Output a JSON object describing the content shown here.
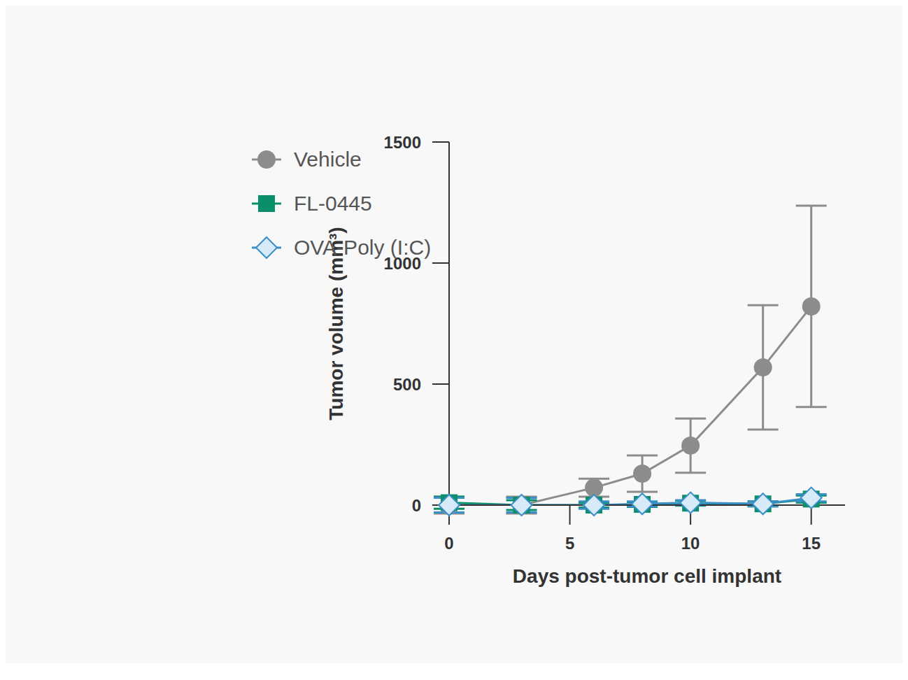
{
  "chart_data": {
    "type": "line",
    "x_label": "Days post-tumor cell implant",
    "y_label": "Tumor volume (mm³)",
    "x": [
      0,
      3,
      6,
      8,
      10,
      13,
      15
    ],
    "xlim": [
      0,
      16.4
    ],
    "xticks": [
      0,
      5,
      10,
      15
    ],
    "ylim": [
      0,
      1500
    ],
    "yticks": [
      0,
      500,
      1000,
      1500
    ],
    "grid": false,
    "legend": "upper left",
    "series": [
      {
        "name": "Vehicle",
        "color": "#8c8c8c",
        "marker": "circle",
        "values": [
          0,
          0,
          72,
          130,
          246,
          569,
          821
        ],
        "errors": [
          35,
          35,
          37,
          75,
          112,
          257,
          416
        ]
      },
      {
        "name": "FL-0445",
        "color": "#0a8f6a",
        "marker": "square",
        "values": [
          10,
          0,
          0,
          3,
          8,
          5,
          25
        ],
        "errors": [
          25,
          20,
          10,
          10,
          10,
          10,
          15
        ]
      },
      {
        "name": "OVA-Poly (I:C)",
        "color": "#3a8fc8",
        "marker": "diamond",
        "values": [
          0,
          0,
          0,
          5,
          10,
          5,
          30
        ],
        "errors": [
          30,
          30,
          15,
          10,
          10,
          10,
          15
        ]
      }
    ]
  }
}
